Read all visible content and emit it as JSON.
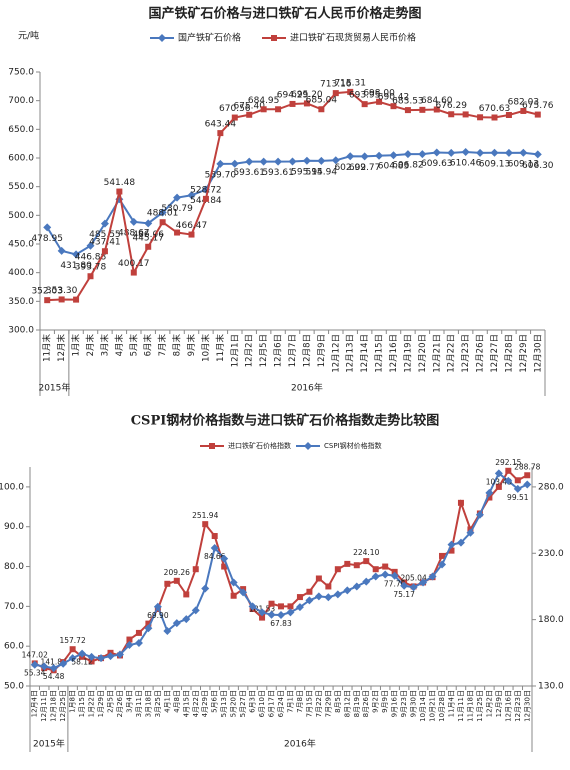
{
  "chart_data": [
    {
      "type": "line",
      "title": "国产铁矿石价格与进口铁矿石人民币价格走势图",
      "y_label": "元/吨",
      "categories": [
        "11月末",
        "12月末",
        "1月末",
        "2月末",
        "3月末",
        "4月末",
        "5月末",
        "6月末",
        "7月末",
        "8月末",
        "9月末",
        "10月末",
        "11月末",
        "12月1日",
        "12月2日",
        "12月5日",
        "12月6日",
        "12月7日",
        "12月8日",
        "12月9日",
        "12月12日",
        "12月13日",
        "12月14日",
        "12月15日",
        "12月16日",
        "12月19日",
        "12月20日",
        "12月21日",
        "12月22日",
        "12月23日",
        "12月26日",
        "12月27日",
        "12月28日",
        "12月29日",
        "12月30日"
      ],
      "x_group_labels": [
        "2015年",
        "2016年"
      ],
      "series": [
        {
          "name": "国产铁矿石价格",
          "color": "#4a78be",
          "marker": "diamond",
          "values": [
            478.95,
            438,
            431.8,
            446.88,
            485.55,
            528,
            488.67,
            486.06,
            505,
            530.79,
            535,
            544.84,
            589.7,
            590,
            593.61,
            593.61,
            593.61,
            594,
            595.15,
            594.94,
            596,
            602.99,
            602.77,
            604,
            604.83,
            606.82,
            606.82,
            609.63,
            609,
            610.46,
            609,
            609.13,
            609,
            609.13,
            606.3
          ],
          "value_labels": [
            "478.95",
            null,
            "431.80",
            "446.88",
            "485.55",
            null,
            "488.67",
            "486.06",
            null,
            "530.79",
            null,
            "544.84",
            "589.70",
            null,
            "593.61",
            null,
            "593.61",
            null,
            "595.15",
            "594.94",
            null,
            "602.99",
            "602.77",
            null,
            "604.83",
            "606.82",
            null,
            "609.63",
            null,
            "610.46",
            null,
            "609.13",
            null,
            "609.13",
            "606.30"
          ]
        },
        {
          "name": "进口铁矿石现货贸易人民币价格",
          "color": "#c0403c",
          "marker": "square",
          "values": [
            352.03,
            353.3,
            353,
            393.78,
            437.41,
            541.48,
            400.17,
            445.17,
            488.01,
            470,
            466.47,
            528.72,
            643.44,
            670.56,
            675.4,
            684.95,
            685,
            694.29,
            695.2,
            685.04,
            713.16,
            715.31,
            693.95,
            698.0,
            690.42,
            683.53,
            684,
            684.6,
            676.29,
            676,
            671,
            670.63,
            675,
            682.03,
            675.76
          ],
          "value_labels": [
            "352.03",
            "353.30",
            null,
            "393.78",
            "437.41",
            "541.48",
            "400.17",
            "445.17",
            "488.01",
            null,
            "466.47",
            "528.72",
            "643.44",
            "670.56",
            "675.40",
            "684.95",
            null,
            "694.29",
            "695.20",
            "685.04",
            "713.16",
            "715.31",
            "693.95",
            "698.00",
            "690.42",
            "683.53",
            null,
            "684.60",
            "676.29",
            null,
            null,
            "670.63",
            null,
            "682.03",
            "675.76"
          ]
        }
      ],
      "ylim": [
        300,
        750
      ],
      "yticks": [
        {
          "value": 300,
          "label": "300.0"
        },
        {
          "value": 350,
          "label": "350.0"
        },
        {
          "value": 400,
          "label": "400.0"
        },
        {
          "value": 450,
          "label": "450.0"
        },
        {
          "value": 500,
          "label": "500.0"
        },
        {
          "value": 550,
          "label": "550.0"
        },
        {
          "value": 600,
          "label": "600.0"
        },
        {
          "value": 650,
          "label": "650.0"
        },
        {
          "value": 700,
          "label": "700.0"
        },
        {
          "value": 750,
          "label": "750.0"
        }
      ],
      "grid": false,
      "legend": "top"
    },
    {
      "type": "line",
      "title": "CSPI钢材价格指数与进口铁矿石价格指数走势比较图",
      "categories": [
        "12月4日",
        "12月11日",
        "12月18日",
        "12月25日",
        "1月8日",
        "1月15日",
        "1月22日",
        "1月29日",
        "2月5日",
        "2月26日",
        "3月4日",
        "3月11日",
        "3月18日",
        "3月25日",
        "4月1日",
        "4月8日",
        "4月15日",
        "4月22日",
        "4月29日",
        "5月6日",
        "5月13日",
        "5月20日",
        "5月27日",
        "6月3日",
        "6月10日",
        "6月17日",
        "6月24日",
        "7月1日",
        "7月8日",
        "7月15日",
        "7月22日",
        "7月29日",
        "8月5日",
        "8月12日",
        "8月19日",
        "8月26日",
        "9月2日",
        "9月9日",
        "9月16日",
        "9月23日",
        "9月30日",
        "10月14日",
        "10月21日",
        "10月28日",
        "11月4日",
        "11月11日",
        "11月18日",
        "11月25日",
        "12月2日",
        "12月9日",
        "12月16日",
        "12月23日",
        "12月30日"
      ],
      "x_group_labels": [
        "2015年",
        "2016年"
      ],
      "series": [
        {
          "name": "进口铁矿石价格指数",
          "color": "#c0403c",
          "marker": "square",
          "axis": "y2",
          "values": [
            147.02,
            143.5,
            141.84,
            148,
            157.72,
            152,
            148.5,
            151,
            155,
            153,
            165,
            170,
            177,
            188,
            207,
            209.26,
            199,
            218,
            251.94,
            243,
            220,
            198,
            203,
            188,
            181.53,
            192,
            190,
            190,
            197,
            201,
            211,
            205,
            218,
            222,
            221,
            224.1,
            218,
            220,
            216,
            208,
            205.04,
            208,
            212,
            228,
            232,
            268,
            248,
            260,
            272,
            280,
            292.15,
            285,
            288.78
          ],
          "value_labels": [
            "147.02",
            null,
            "141.84",
            null,
            "157.72",
            null,
            null,
            null,
            null,
            null,
            null,
            null,
            null,
            null,
            null,
            "209.26",
            null,
            null,
            "251.94",
            null,
            null,
            null,
            null,
            null,
            "181.53",
            null,
            null,
            null,
            null,
            null,
            null,
            null,
            null,
            null,
            null,
            "224.10",
            null,
            null,
            null,
            null,
            "205.04",
            null,
            null,
            null,
            null,
            null,
            null,
            null,
            null,
            null,
            "292.15",
            null,
            "288.78"
          ]
        },
        {
          "name": "CSPI钢材价格指数",
          "color": "#4a78be",
          "marker": "diamond",
          "values": [
            55.34,
            54.9,
            54.48,
            55.6,
            57.0,
            58.12,
            57.3,
            57.0,
            57.5,
            57.9,
            60.3,
            60.8,
            64.5,
            69.9,
            63.8,
            65.8,
            66.8,
            69.0,
            74.5,
            84.66,
            82.0,
            76.0,
            73.5,
            70.0,
            68.5,
            67.9,
            67.83,
            68.5,
            69.8,
            71.5,
            72.5,
            72.3,
            73.0,
            74.0,
            75.0,
            76.2,
            77.5,
            78.0,
            77.7,
            75.17,
            74.8,
            76.0,
            77.5,
            80.5,
            85.5,
            86.0,
            88.5,
            93.0,
            98.5,
            103.4,
            101.5,
            99.51,
            100.6
          ],
          "value_labels": [
            "55.34",
            null,
            "54.48",
            null,
            null,
            "58.12",
            null,
            null,
            null,
            null,
            null,
            null,
            null,
            "69.90",
            null,
            null,
            null,
            null,
            null,
            "84.66",
            null,
            null,
            null,
            null,
            null,
            null,
            "67.83",
            null,
            null,
            null,
            null,
            null,
            null,
            null,
            null,
            null,
            null,
            null,
            "77.70",
            "75.17",
            null,
            null,
            null,
            null,
            null,
            null,
            null,
            null,
            null,
            "103.40",
            null,
            "99.51",
            null
          ]
        }
      ],
      "ylim": [
        50,
        105
      ],
      "yticks": [
        {
          "value": 50,
          "label": "50.0"
        },
        {
          "value": 60,
          "label": "60.0"
        },
        {
          "value": 70,
          "label": "70.0"
        },
        {
          "value": 80,
          "label": "80.0"
        },
        {
          "value": 90,
          "label": "90.0"
        },
        {
          "value": 100,
          "label": "100.0"
        }
      ],
      "y2lim": [
        130,
        295
      ],
      "y2ticks": [
        {
          "value": 130,
          "label": "130.0"
        },
        {
          "value": 180,
          "label": "180.0"
        },
        {
          "value": 230,
          "label": "230.0"
        },
        {
          "value": 280,
          "label": "280.0"
        }
      ],
      "grid": false,
      "legend": "top"
    }
  ]
}
